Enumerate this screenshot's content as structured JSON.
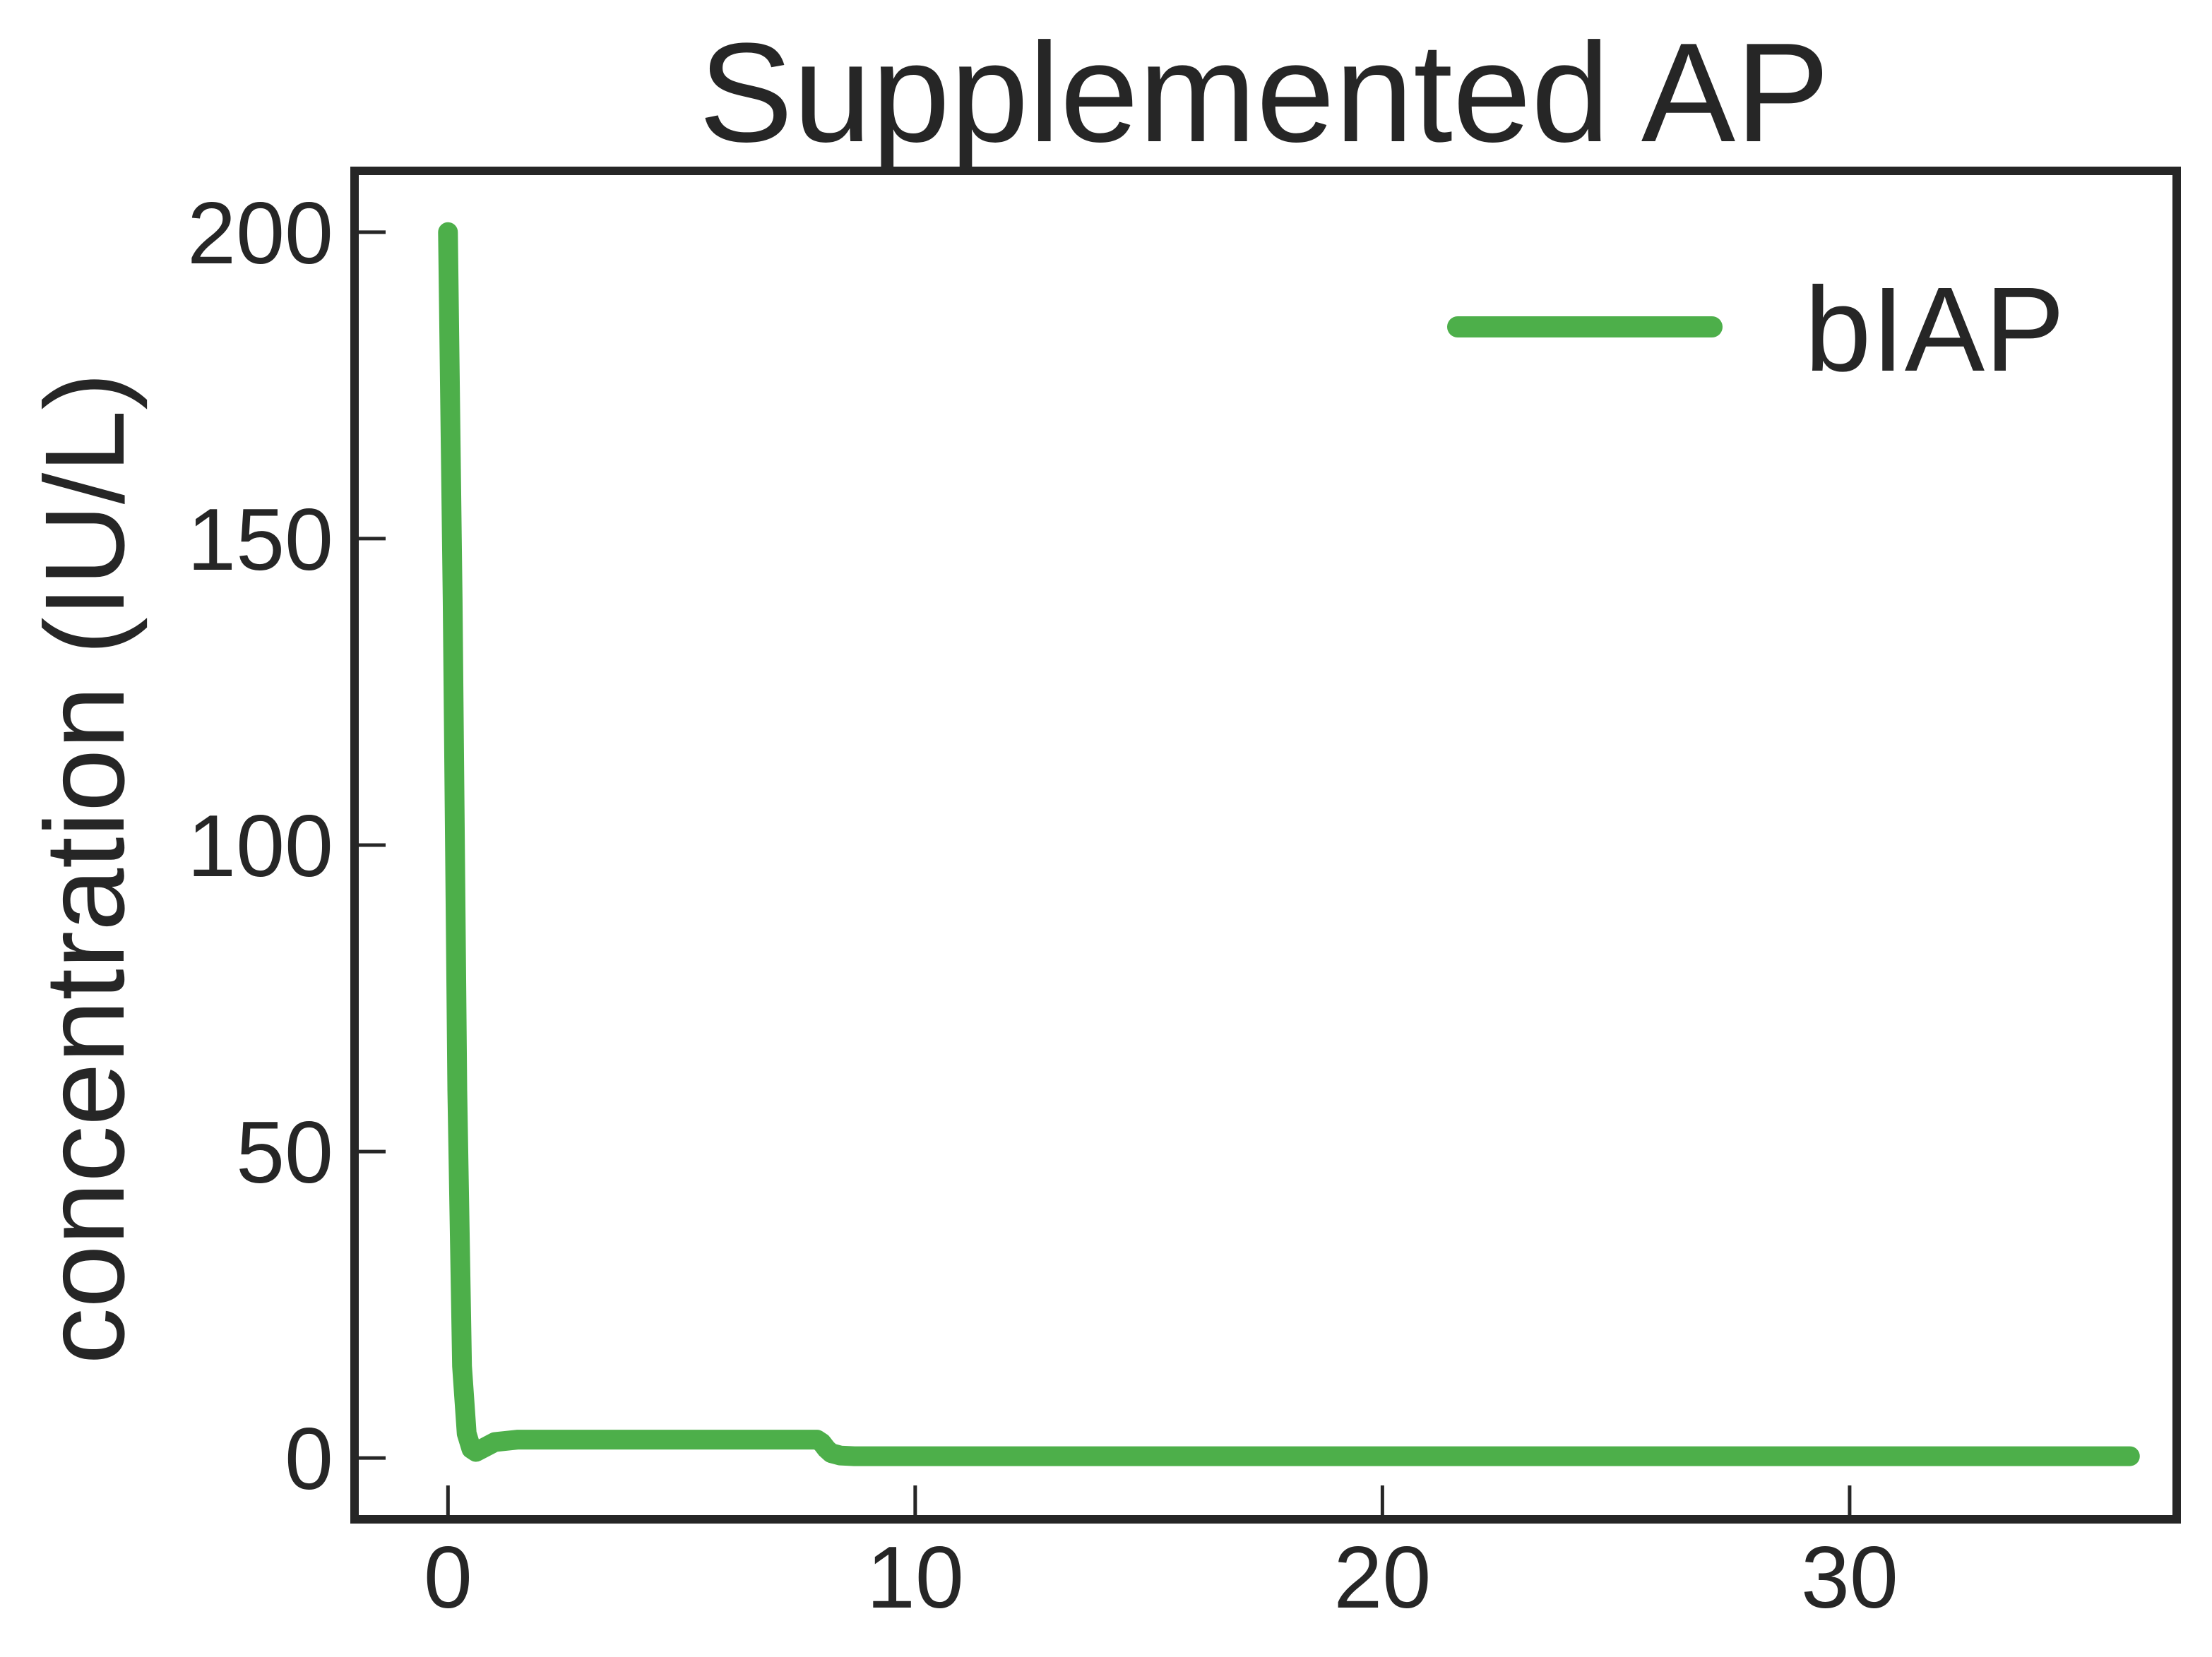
{
  "chart_data": {
    "type": "line",
    "title": "Supplemented AP",
    "xlabel": "",
    "ylabel": "concentration (IU/L)",
    "xlim": [
      -2,
      37
    ],
    "ylim": [
      -10,
      210
    ],
    "xticks": [
      0,
      10,
      20,
      30
    ],
    "yticks": [
      0,
      50,
      100,
      150,
      200
    ],
    "grid": false,
    "legend_position": "top-right",
    "series": [
      {
        "name": "bIAP",
        "color": "#4daf4a",
        "x": [
          0,
          0.1,
          0.2,
          0.3,
          0.4,
          0.5,
          0.6,
          0.8,
          1.0,
          1.5,
          2,
          3,
          4,
          5,
          6,
          7,
          7.5,
          7.9,
          8.0,
          8.1,
          8.2,
          8.4,
          8.7,
          9,
          10,
          12,
          15,
          20,
          25,
          30,
          33,
          36
        ],
        "y": [
          200,
          140,
          60,
          15,
          4,
          1.5,
          1.0,
          1.8,
          2.6,
          3.0,
          3.0,
          3.0,
          3.0,
          3.0,
          3.0,
          3.0,
          3.0,
          3.0,
          2.5,
          1.5,
          0.8,
          0.4,
          0.3,
          0.3,
          0.3,
          0.3,
          0.3,
          0.3,
          0.3,
          0.3,
          0.3,
          0.3
        ]
      }
    ]
  }
}
